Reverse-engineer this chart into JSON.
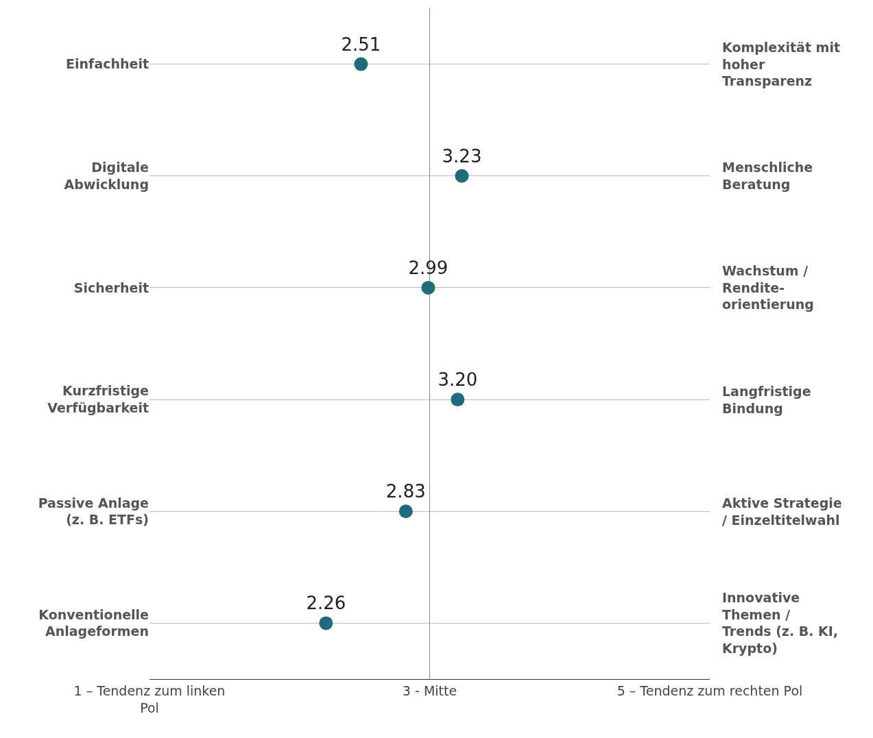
{
  "chart_data": {
    "type": "scatter",
    "orientation": "horizontal",
    "categories": [
      "Einfachheit",
      "Digitale\nAbwicklung",
      "Sicherheit",
      "Kurzfristige\nVerfügbarkeit",
      "Passive Anlage\n(z. B. ETFs)",
      "Konventionelle\nAnlageformen"
    ],
    "y2_categories": [
      "Komplexität mit\nhoher\nTransparenz",
      "Menschliche\nBeratung",
      "Wachstum /\nRendite-\norientierung",
      "Langfristige\nBindung",
      "Aktive Strategie\n/ Einzeltitelwahl",
      "Innovative\nThemen /\nTrends (z. B. KI,\nKrypto)"
    ],
    "series": [
      {
        "color": "#1f6b7a",
        "values": [
          2.51,
          3.23,
          2.99,
          3.2,
          2.83,
          2.26
        ],
        "value_labels": [
          "2.51",
          "3.23",
          "2.99",
          "3.20",
          "2.83",
          "2.26"
        ]
      }
    ],
    "xlim": [
      1,
      5
    ],
    "xticks": [
      {
        "value": 1,
        "label": "1 – Tendenz zum linken\nPol"
      },
      {
        "value": 3,
        "label": "3 - Mitte"
      },
      {
        "value": 5,
        "label": "5 – Tendenz zum rechten Pol"
      }
    ],
    "ref_lines": [
      {
        "axis": "x",
        "value": 3,
        "color": "#888888"
      }
    ],
    "grid": "y",
    "marker": "circle"
  }
}
